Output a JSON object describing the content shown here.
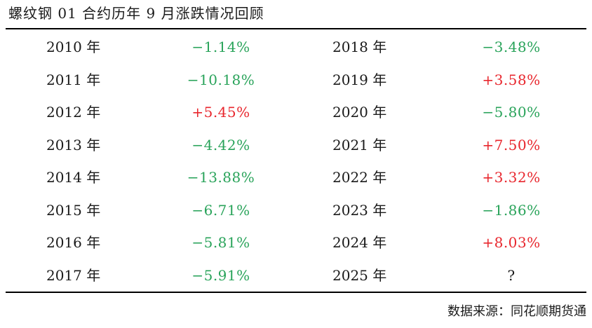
{
  "title": "螺纹钢 01 合约历年 9 月涨跌情况回顾",
  "colors": {
    "up": "#e8262d",
    "down": "#29a35a",
    "neutral": "#1a1a1a"
  },
  "rows": [
    {
      "year_a": "2010 年",
      "value_a": "−1.14%",
      "trend_a": "down",
      "year_b": "2018 年",
      "value_b": "−3.48%",
      "trend_b": "down"
    },
    {
      "year_a": "2011 年",
      "value_a": "−10.18%",
      "trend_a": "down",
      "year_b": "2019 年",
      "value_b": "+3.58%",
      "trend_b": "up"
    },
    {
      "year_a": "2012 年",
      "value_a": "+5.45%",
      "trend_a": "up",
      "year_b": "2020 年",
      "value_b": "−5.80%",
      "trend_b": "down"
    },
    {
      "year_a": "2013 年",
      "value_a": "−4.42%",
      "trend_a": "down",
      "year_b": "2021 年",
      "value_b": "+7.50%",
      "trend_b": "up"
    },
    {
      "year_a": "2014 年",
      "value_a": "−13.88%",
      "trend_a": "down",
      "year_b": "2022 年",
      "value_b": "+3.32%",
      "trend_b": "up"
    },
    {
      "year_a": "2015 年",
      "value_a": "−6.71%",
      "trend_a": "down",
      "year_b": "2023 年",
      "value_b": "−1.86%",
      "trend_b": "down"
    },
    {
      "year_a": "2016 年",
      "value_a": "−5.81%",
      "trend_a": "down",
      "year_b": "2024 年",
      "value_b": "+8.03%",
      "trend_b": "up"
    },
    {
      "year_a": "2017 年",
      "value_a": "−5.91%",
      "trend_a": "down",
      "year_b": "2025 年",
      "value_b": "?",
      "trend_b": "neutral"
    }
  ],
  "source": "数据来源：同花顺期货通"
}
